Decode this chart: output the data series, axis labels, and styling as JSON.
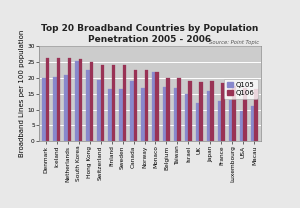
{
  "title": "Top 20 Broadband Countries by Population\nPenetration 2005 - 2006",
  "source": "Source: Point Topic",
  "ylabel": "Broadband Lines per 100 population",
  "categories": [
    "Denmark",
    "Iceland",
    "Netherlands",
    "South Korea",
    "Hong Kong",
    "Switzerland",
    "Finland",
    "Sweden",
    "Canada",
    "Norway",
    "Monaco",
    "Belgium",
    "Taiwan",
    "Israel",
    "UK",
    "Japan",
    "France",
    "Luxembourg",
    "USA",
    "Macau"
  ],
  "q105": [
    20.0,
    20.3,
    20.8,
    25.2,
    22.3,
    19.2,
    16.4,
    16.5,
    19.0,
    16.9,
    21.7,
    17.1,
    16.9,
    15.0,
    12.1,
    15.8,
    12.8,
    13.1,
    9.5,
    11.1
  ],
  "q106": [
    26.3,
    26.3,
    26.1,
    25.9,
    24.8,
    24.1,
    24.0,
    23.9,
    22.4,
    22.3,
    21.7,
    19.8,
    19.8,
    19.1,
    18.7,
    18.9,
    18.2,
    17.4,
    16.7,
    16.5
  ],
  "color_q105": "#8888cc",
  "color_q106": "#993355",
  "ylim": [
    0,
    30
  ],
  "yticks": [
    0,
    5,
    10,
    15,
    20,
    25,
    30
  ],
  "plot_bg": "#cccccc",
  "fig_bg": "#e8e8e8",
  "grid_color": "#ffffff",
  "title_fontsize": 6.5,
  "axis_label_fontsize": 5.0,
  "tick_fontsize": 4.2,
  "legend_fontsize": 5.0,
  "source_fontsize": 3.8
}
